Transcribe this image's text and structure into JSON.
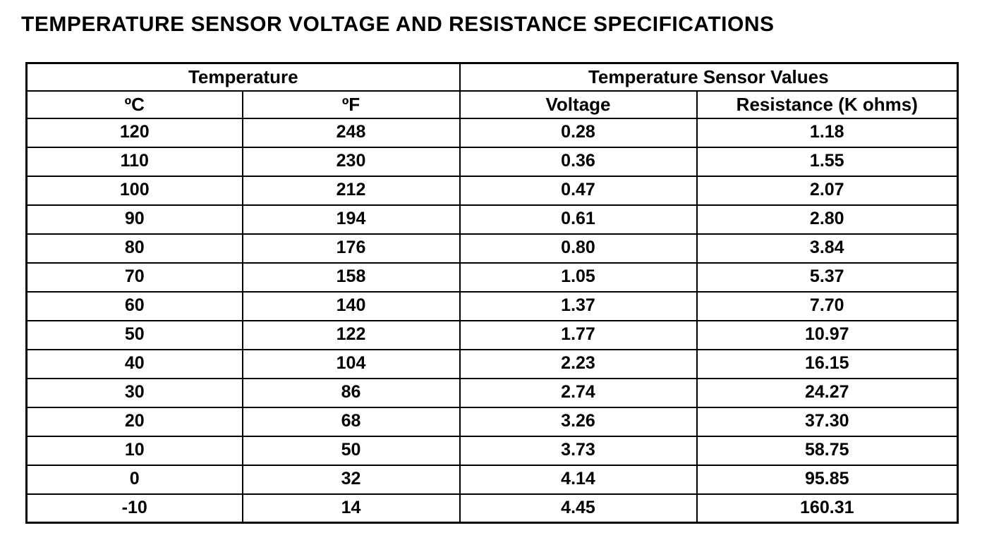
{
  "page": {
    "title": "TEMPERATURE SENSOR VOLTAGE AND RESISTANCE SPECIFICATIONS"
  },
  "table": {
    "group_headers": [
      {
        "label": "Temperature",
        "colspan": 2
      },
      {
        "label": "Temperature Sensor Values",
        "colspan": 2
      }
    ],
    "column_headers": [
      "ºC",
      "ºF",
      "Voltage",
      "Resistance (K ohms)"
    ],
    "rows": [
      [
        "120",
        "248",
        "0.28",
        "1.18"
      ],
      [
        "110",
        "230",
        "0.36",
        "1.55"
      ],
      [
        "100",
        "212",
        "0.47",
        "2.07"
      ],
      [
        "90",
        "194",
        "0.61",
        "2.80"
      ],
      [
        "80",
        "176",
        "0.80",
        "3.84"
      ],
      [
        "70",
        "158",
        "1.05",
        "5.37"
      ],
      [
        "60",
        "140",
        "1.37",
        "7.70"
      ],
      [
        "50",
        "122",
        "1.77",
        "10.97"
      ],
      [
        "40",
        "104",
        "2.23",
        "16.15"
      ],
      [
        "30",
        "86",
        "2.74",
        "24.27"
      ],
      [
        "20",
        "68",
        "3.26",
        "37.30"
      ],
      [
        "10",
        "50",
        "3.73",
        "58.75"
      ],
      [
        "0",
        "32",
        "4.14",
        "95.85"
      ],
      [
        "-10",
        "14",
        "4.45",
        "160.31"
      ]
    ]
  }
}
